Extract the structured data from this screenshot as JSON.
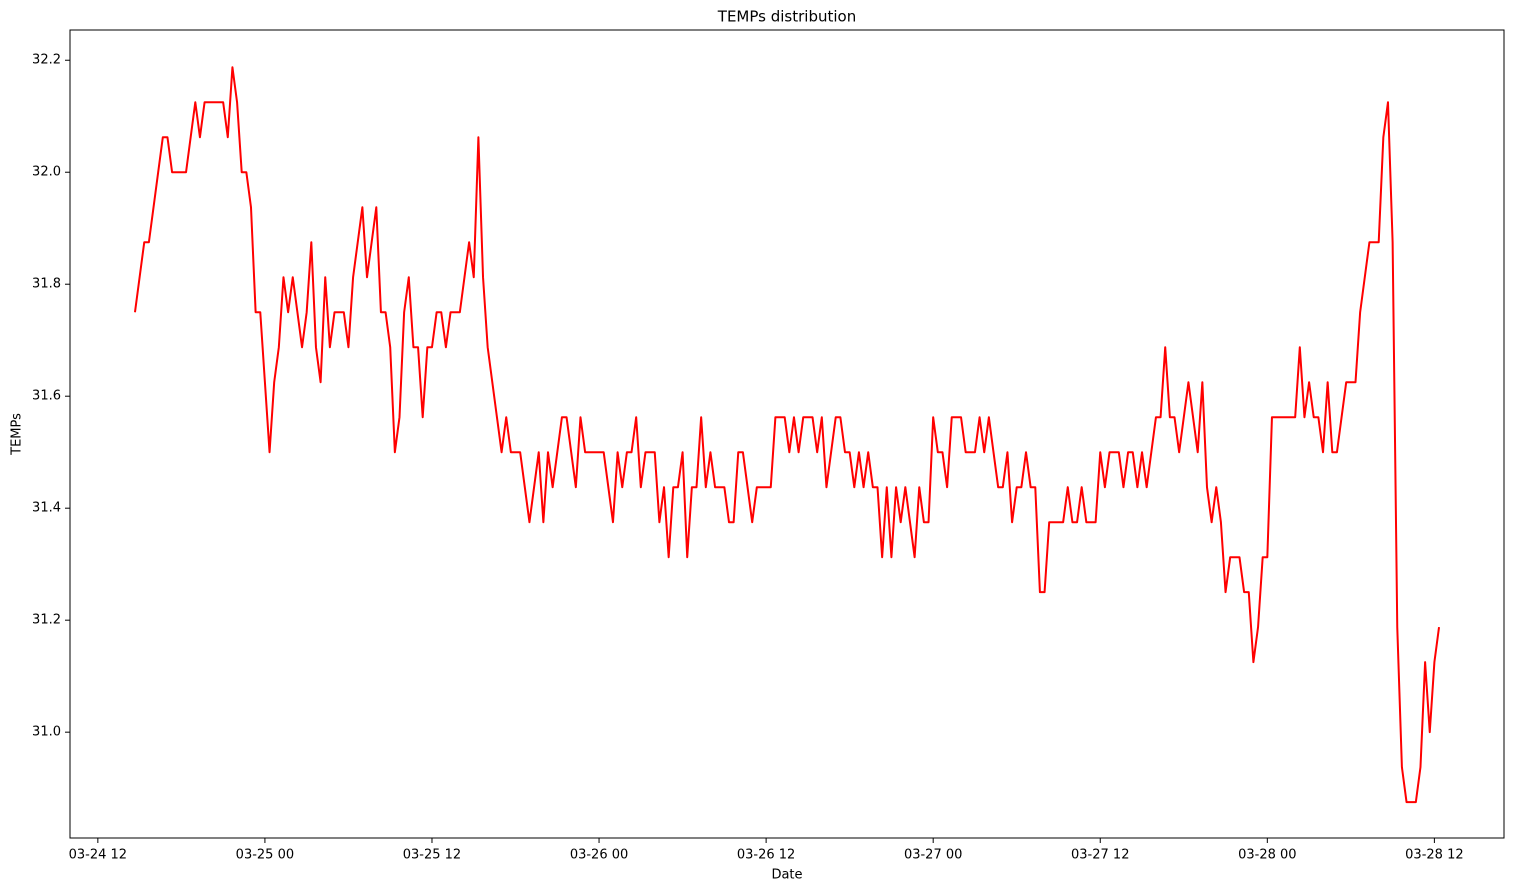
{
  "chart_data": {
    "type": "line",
    "title": "TEMPs distribution",
    "x_label": "Date",
    "y_label": "TEMPs",
    "color": "#ff0000",
    "x": [
      "03-24 14:40",
      "03-24 15:00",
      "03-24 15:20",
      "03-24 15:40",
      "03-24 16:00",
      "03-24 16:20",
      "03-24 16:40",
      "03-24 17:00",
      "03-24 17:20",
      "03-24 17:40",
      "03-24 18:00",
      "03-24 18:20",
      "03-24 18:40",
      "03-24 19:00",
      "03-24 19:20",
      "03-24 19:40",
      "03-24 20:00",
      "03-24 20:20",
      "03-24 20:40",
      "03-24 21:00",
      "03-24 21:20",
      "03-24 21:40",
      "03-24 22:00",
      "03-24 22:20",
      "03-24 22:40",
      "03-24 23:00",
      "03-24 23:20",
      "03-24 23:40",
      "03-25 00:00",
      "03-25 00:20",
      "03-25 00:40",
      "03-25 01:00",
      "03-25 01:20",
      "03-25 01:40",
      "03-25 02:00",
      "03-25 02:20",
      "03-25 02:40",
      "03-25 03:00",
      "03-25 03:20",
      "03-25 03:40",
      "03-25 04:00",
      "03-25 04:20",
      "03-25 04:40",
      "03-25 05:00",
      "03-25 05:20",
      "03-25 05:40",
      "03-25 06:00",
      "03-25 06:20",
      "03-25 06:40",
      "03-25 07:00",
      "03-25 07:20",
      "03-25 07:40",
      "03-25 08:00",
      "03-25 08:20",
      "03-25 08:40",
      "03-25 09:00",
      "03-25 09:20",
      "03-25 09:40",
      "03-25 10:00",
      "03-25 10:20",
      "03-25 10:40",
      "03-25 11:00",
      "03-25 11:20",
      "03-25 11:40",
      "03-25 12:00",
      "03-25 12:20",
      "03-25 12:40",
      "03-25 13:00",
      "03-25 13:20",
      "03-25 13:40",
      "03-25 14:00",
      "03-25 14:20",
      "03-25 14:40",
      "03-25 15:00",
      "03-25 15:20",
      "03-25 15:40",
      "03-25 16:00",
      "03-25 16:20",
      "03-25 16:40",
      "03-25 17:00",
      "03-25 17:20",
      "03-25 17:40",
      "03-25 18:00",
      "03-25 18:20",
      "03-25 18:40",
      "03-25 19:00",
      "03-25 19:20",
      "03-25 19:40",
      "03-25 20:00",
      "03-25 20:20",
      "03-25 20:40",
      "03-25 21:00",
      "03-25 21:20",
      "03-25 21:40",
      "03-25 22:00",
      "03-25 22:20",
      "03-25 22:40",
      "03-25 23:00",
      "03-25 23:20",
      "03-25 23:40",
      "03-26 00:00",
      "03-26 00:20",
      "03-26 00:40",
      "03-26 01:00",
      "03-26 01:20",
      "03-26 01:40",
      "03-26 02:00",
      "03-26 02:20",
      "03-26 02:40",
      "03-26 03:00",
      "03-26 03:20",
      "03-26 03:40",
      "03-26 04:00",
      "03-26 04:20",
      "03-26 04:40",
      "03-26 05:00",
      "03-26 05:20",
      "03-26 05:40",
      "03-26 06:00",
      "03-26 06:20",
      "03-26 06:40",
      "03-26 07:00",
      "03-26 07:20",
      "03-26 07:40",
      "03-26 08:00",
      "03-26 08:20",
      "03-26 08:40",
      "03-26 09:00",
      "03-26 09:20",
      "03-26 09:40",
      "03-26 10:00",
      "03-26 10:20",
      "03-26 10:40",
      "03-26 11:00",
      "03-26 11:20",
      "03-26 11:40",
      "03-26 12:00",
      "03-26 12:20",
      "03-26 12:40",
      "03-26 13:00",
      "03-26 13:20",
      "03-26 13:40",
      "03-26 14:00",
      "03-26 14:20",
      "03-26 14:40",
      "03-26 15:00",
      "03-26 15:20",
      "03-26 15:40",
      "03-26 16:00",
      "03-26 16:20",
      "03-26 16:40",
      "03-26 17:00",
      "03-26 17:20",
      "03-26 17:40",
      "03-26 18:00",
      "03-26 18:20",
      "03-26 18:40",
      "03-26 19:00",
      "03-26 19:20",
      "03-26 19:40",
      "03-26 20:00",
      "03-26 20:20",
      "03-26 20:40",
      "03-26 21:00",
      "03-26 21:20",
      "03-26 21:40",
      "03-26 22:00",
      "03-26 22:20",
      "03-26 22:40",
      "03-26 23:00",
      "03-26 23:20",
      "03-26 23:40",
      "03-27 00:00",
      "03-27 00:20",
      "03-27 00:40",
      "03-27 01:00",
      "03-27 01:20",
      "03-27 01:40",
      "03-27 02:00",
      "03-27 02:20",
      "03-27 02:40",
      "03-27 03:00",
      "03-27 03:20",
      "03-27 03:40",
      "03-27 04:00",
      "03-27 04:20",
      "03-27 04:40",
      "03-27 05:00",
      "03-27 05:20",
      "03-27 05:40",
      "03-27 06:00",
      "03-27 06:20",
      "03-27 06:40",
      "03-27 07:00",
      "03-27 07:20",
      "03-27 07:40",
      "03-27 08:00",
      "03-27 08:20",
      "03-27 08:40",
      "03-27 09:00",
      "03-27 09:20",
      "03-27 09:40",
      "03-27 10:00",
      "03-27 10:20",
      "03-27 10:40",
      "03-27 11:00",
      "03-27 11:20",
      "03-27 11:40",
      "03-27 12:00",
      "03-27 12:20",
      "03-27 12:40",
      "03-27 13:00",
      "03-27 13:20",
      "03-27 13:40",
      "03-27 14:00",
      "03-27 14:20",
      "03-27 14:40",
      "03-27 15:00",
      "03-27 15:20",
      "03-27 15:40",
      "03-27 16:00",
      "03-27 16:20",
      "03-27 16:40",
      "03-27 17:00",
      "03-27 17:20",
      "03-27 17:40",
      "03-27 18:00",
      "03-27 18:20",
      "03-27 18:40",
      "03-27 19:00",
      "03-27 19:20",
      "03-27 19:40",
      "03-27 20:00",
      "03-27 20:20",
      "03-27 20:40",
      "03-27 21:00",
      "03-27 21:20",
      "03-27 21:40",
      "03-27 22:00",
      "03-27 22:20",
      "03-27 22:40",
      "03-27 23:00",
      "03-27 23:20",
      "03-27 23:40",
      "03-28 00:00",
      "03-28 00:20",
      "03-28 00:40",
      "03-28 01:00",
      "03-28 01:20",
      "03-28 01:40",
      "03-28 02:00",
      "03-28 02:20",
      "03-28 02:40",
      "03-28 03:00",
      "03-28 03:20",
      "03-28 03:40",
      "03-28 04:00",
      "03-28 04:20",
      "03-28 04:40",
      "03-28 05:00",
      "03-28 05:20",
      "03-28 05:40",
      "03-28 06:00",
      "03-28 06:20",
      "03-28 06:40",
      "03-28 07:00",
      "03-28 07:20",
      "03-28 07:40",
      "03-28 08:00",
      "03-28 08:20",
      "03-28 08:40",
      "03-28 09:00",
      "03-28 09:20",
      "03-28 09:40",
      "03-28 10:00",
      "03-28 10:20",
      "03-28 10:40",
      "03-28 11:00",
      "03-28 11:20",
      "03-28 11:40",
      "03-28 12:00",
      "03-28 12:20"
    ],
    "values": [
      31.75,
      31.8125,
      31.875,
      31.875,
      31.9375,
      32.0,
      32.0625,
      32.0625,
      32.0,
      32.0,
      32.0,
      32.0,
      32.0625,
      32.125,
      32.0625,
      32.125,
      32.125,
      32.125,
      32.125,
      32.125,
      32.0625,
      32.1875,
      32.125,
      32.0,
      32.0,
      31.9375,
      31.75,
      31.75,
      31.625,
      31.5,
      31.625,
      31.6875,
      31.8125,
      31.75,
      31.8125,
      31.75,
      31.6875,
      31.75,
      31.875,
      31.6875,
      31.625,
      31.8125,
      31.6875,
      31.75,
      31.75,
      31.75,
      31.6875,
      31.8125,
      31.875,
      31.9375,
      31.8125,
      31.875,
      31.9375,
      31.75,
      31.75,
      31.6875,
      31.5,
      31.5625,
      31.75,
      31.8125,
      31.6875,
      31.6875,
      31.5625,
      31.6875,
      31.6875,
      31.75,
      31.75,
      31.6875,
      31.75,
      31.75,
      31.75,
      31.8125,
      31.875,
      31.8125,
      32.0625,
      31.8125,
      31.6875,
      31.625,
      31.5625,
      31.5,
      31.5625,
      31.5,
      31.5,
      31.5,
      31.4375,
      31.375,
      31.4375,
      31.5,
      31.375,
      31.5,
      31.4375,
      31.5,
      31.5625,
      31.5625,
      31.5,
      31.4375,
      31.5625,
      31.5,
      31.5,
      31.5,
      31.5,
      31.5,
      31.4375,
      31.375,
      31.5,
      31.4375,
      31.5,
      31.5,
      31.5625,
      31.4375,
      31.5,
      31.5,
      31.5,
      31.375,
      31.4375,
      31.3125,
      31.4375,
      31.4375,
      31.5,
      31.3125,
      31.4375,
      31.4375,
      31.5625,
      31.4375,
      31.5,
      31.4375,
      31.4375,
      31.4375,
      31.375,
      31.375,
      31.5,
      31.5,
      31.4375,
      31.375,
      31.4375,
      31.4375,
      31.4375,
      31.4375,
      31.5625,
      31.5625,
      31.5625,
      31.5,
      31.5625,
      31.5,
      31.5625,
      31.5625,
      31.5625,
      31.5,
      31.5625,
      31.4375,
      31.5,
      31.5625,
      31.5625,
      31.5,
      31.5,
      31.4375,
      31.5,
      31.4375,
      31.5,
      31.4375,
      31.4375,
      31.3125,
      31.4375,
      31.3125,
      31.4375,
      31.375,
      31.4375,
      31.375,
      31.3125,
      31.4375,
      31.375,
      31.375,
      31.5625,
      31.5,
      31.5,
      31.4375,
      31.5625,
      31.5625,
      31.5625,
      31.5,
      31.5,
      31.5,
      31.5625,
      31.5,
      31.5625,
      31.5,
      31.4375,
      31.4375,
      31.5,
      31.375,
      31.4375,
      31.4375,
      31.5,
      31.4375,
      31.4375,
      31.25,
      31.25,
      31.375,
      31.375,
      31.375,
      31.375,
      31.4375,
      31.375,
      31.375,
      31.4375,
      31.375,
      31.375,
      31.375,
      31.5,
      31.4375,
      31.5,
      31.5,
      31.5,
      31.4375,
      31.5,
      31.5,
      31.4375,
      31.5,
      31.4375,
      31.5,
      31.5625,
      31.5625,
      31.6875,
      31.5625,
      31.5625,
      31.5,
      31.5625,
      31.625,
      31.5625,
      31.5,
      31.625,
      31.4375,
      31.375,
      31.4375,
      31.375,
      31.25,
      31.3125,
      31.3125,
      31.3125,
      31.25,
      31.25,
      31.125,
      31.1875,
      31.3125,
      31.3125,
      31.5625,
      31.5625,
      31.5625,
      31.5625,
      31.5625,
      31.5625,
      31.6875,
      31.5625,
      31.625,
      31.5625,
      31.5625,
      31.5,
      31.625,
      31.5,
      31.5,
      31.5625,
      31.625,
      31.625,
      31.625,
      31.75,
      31.8125,
      31.875,
      31.875,
      31.875,
      32.0625,
      32.125,
      31.875,
      31.1875,
      30.9375,
      30.875,
      30.875,
      30.875,
      30.9375,
      31.125,
      31.0,
      31.125,
      31.1875
    ],
    "xlim": [
      "03-24 10:00",
      "03-28 17:00"
    ],
    "xticks": [
      {
        "value": "03-24 12:00",
        "label": "03-24 12"
      },
      {
        "value": "03-25 00:00",
        "label": "03-25 00"
      },
      {
        "value": "03-25 12:00",
        "label": "03-25 12"
      },
      {
        "value": "03-26 00:00",
        "label": "03-26 00"
      },
      {
        "value": "03-26 12:00",
        "label": "03-26 12"
      },
      {
        "value": "03-27 00:00",
        "label": "03-27 00"
      },
      {
        "value": "03-27 12:00",
        "label": "03-27 12"
      },
      {
        "value": "03-28 00:00",
        "label": "03-28 00"
      },
      {
        "value": "03-28 12:00",
        "label": "03-28 12"
      }
    ],
    "ylim": [
      30.811,
      32.254
    ],
    "yticks": [
      {
        "value": 31.0,
        "label": "31.0"
      },
      31.2,
      31.4,
      31.6,
      31.8,
      {
        "value": 32.0,
        "label": "32.0"
      },
      32.2
    ]
  }
}
